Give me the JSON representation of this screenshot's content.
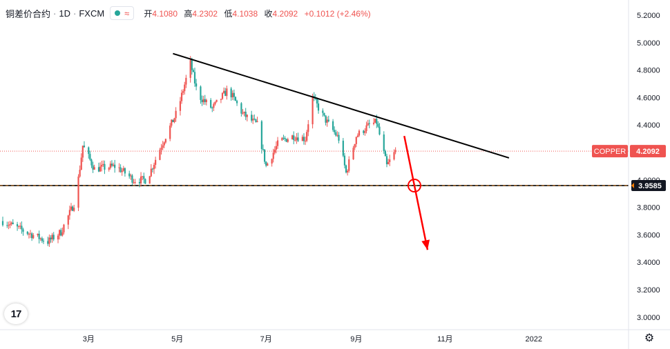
{
  "header": {
    "symbol": "铜差价合约",
    "interval": "1D",
    "exchange": "FXCM",
    "wave_icon": "≈",
    "ohlc": [
      {
        "label": "开",
        "value": "4.1080"
      },
      {
        "label": "高",
        "value": "4.2302"
      },
      {
        "label": "低",
        "value": "4.1038"
      },
      {
        "label": "收",
        "value": "4.2092"
      }
    ],
    "change": "+0.1012 (+2.46%)"
  },
  "price_tag": {
    "label": "COPPER",
    "value": "4.2092",
    "color": "#ef5350"
  },
  "level_tag": {
    "value": "3.9585",
    "color": "#131722"
  },
  "logo_text": "17",
  "colors": {
    "up": "#ef5350",
    "down": "#26a69a",
    "trendline": "#000000",
    "arrow": "#ff0000"
  },
  "chart_data": {
    "type": "candlestick",
    "title": "",
    "xlabel": "",
    "ylabel": "",
    "x_ticks": [
      "3月",
      "5月",
      "7月",
      "9月",
      "11月",
      "2022"
    ],
    "y_ticks": [
      "5.2000",
      "5.0000",
      "4.8000",
      "4.6000",
      "4.4000",
      "4.2000",
      "4.0000",
      "3.8000",
      "3.6000",
      "3.4000",
      "3.2000",
      "3.0000"
    ],
    "ylim": [
      2.93,
      5.26
    ],
    "current_price": 4.2092,
    "support_level": 3.9585,
    "price_path": [
      [
        "2021-01-01",
        3.7
      ],
      [
        "2021-01-15",
        3.63
      ],
      [
        "2021-02-01",
        3.55
      ],
      [
        "2021-02-10",
        3.62
      ],
      [
        "2021-02-20",
        3.85
      ],
      [
        "2021-02-25",
        4.25
      ],
      [
        "2021-03-05",
        4.08
      ],
      [
        "2021-03-20",
        4.1
      ],
      [
        "2021-04-01",
        4.0
      ],
      [
        "2021-04-10",
        4.0
      ],
      [
        "2021-04-20",
        4.25
      ],
      [
        "2021-05-01",
        4.5
      ],
      [
        "2021-05-10",
        4.85
      ],
      [
        "2021-05-15",
        4.62
      ],
      [
        "2021-05-25",
        4.52
      ],
      [
        "2021-06-05",
        4.66
      ],
      [
        "2021-06-15",
        4.48
      ],
      [
        "2021-06-25",
        4.4
      ],
      [
        "2021-07-01",
        4.1
      ],
      [
        "2021-07-10",
        4.28
      ],
      [
        "2021-07-20",
        4.32
      ],
      [
        "2021-07-28",
        4.3
      ],
      [
        "2021-08-02",
        4.6
      ],
      [
        "2021-08-10",
        4.45
      ],
      [
        "2021-08-20",
        4.3
      ],
      [
        "2021-08-25",
        4.05
      ],
      [
        "2021-09-01",
        4.32
      ],
      [
        "2021-09-10",
        4.4
      ],
      [
        "2021-09-15",
        4.42
      ],
      [
        "2021-09-22",
        4.1
      ],
      [
        "2021-09-28",
        4.21
      ]
    ],
    "trendline": [
      [
        "2021-04-28",
        4.92
      ],
      [
        "2021-12-15",
        4.16
      ]
    ],
    "projection_arrow": [
      [
        "2021-10-04",
        4.32
      ],
      [
        "2021-10-20",
        3.49
      ]
    ]
  }
}
